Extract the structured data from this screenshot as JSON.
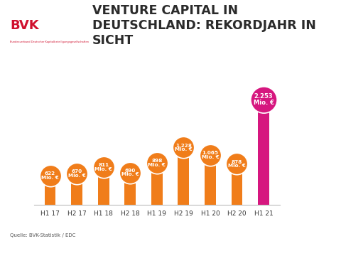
{
  "chart_data": {
    "type": "bar",
    "title": "VENTURE CAPITAL IN DEUTSCHLAND: REKORDJAHR IN SICHT",
    "logo": "BVK",
    "logo_text": "Bundesverband Deutscher Kapitalbeteiligungsgesellschaften",
    "source": "Quelle: BVK-Statistik / EDC",
    "categories": [
      "H1 17",
      "H2 17",
      "H1 18",
      "H2 18",
      "H1 19",
      "H2 19",
      "H1 20",
      "H2 20",
      "H1 21"
    ],
    "values": [
      622,
      670,
      811,
      690,
      898,
      1228,
      1065,
      878,
      2253
    ],
    "value_labels": [
      "622 Mio. €",
      "670 Mio. €",
      "811 Mio. €",
      "690 Mio. €",
      "898 Mio. €",
      "1.228 Mio. €",
      "1.065 Mio. €",
      "878 Mio. €",
      "2.253 Mio. €"
    ],
    "colors": [
      "#f07d1a",
      "#f07d1a",
      "#f07d1a",
      "#f07d1a",
      "#f07d1a",
      "#f07d1a",
      "#f07d1a",
      "#f07d1a",
      "#d6177f"
    ],
    "data_labels": true,
    "tick_labels": "x",
    "grid": false
  }
}
